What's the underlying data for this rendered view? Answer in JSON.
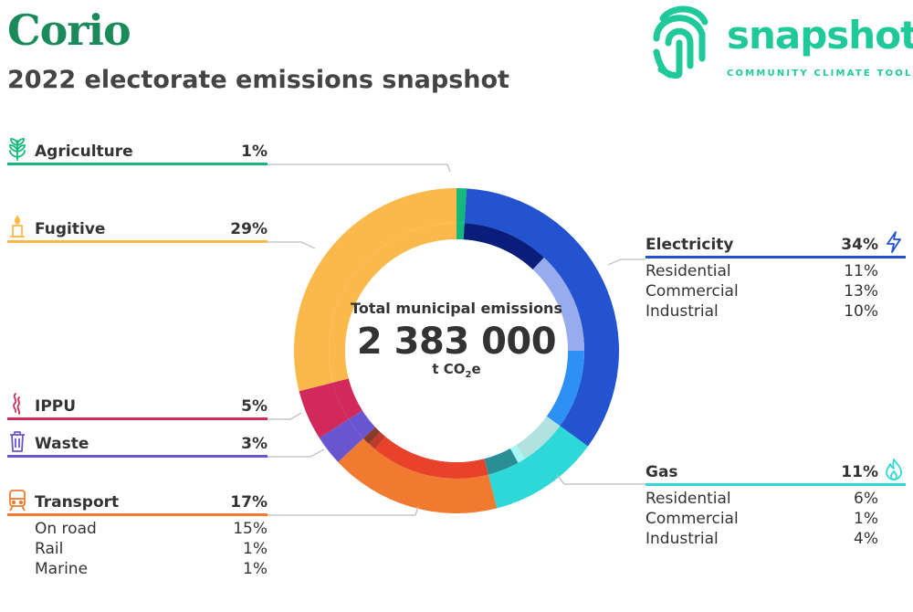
{
  "header": {
    "title": "Corio",
    "subtitle": "2022 electorate emissions snapshot"
  },
  "logo": {
    "word": "snapshot",
    "tagline": "COMMUNITY CLIMATE TOOL",
    "color": "#1fc99a"
  },
  "center": {
    "label": "Total municipal emissions",
    "value": "2 383 000",
    "unit": "t CO",
    "unit_sub": "2",
    "unit_tail": "e"
  },
  "chart_data": {
    "type": "pie",
    "title": "2022 electorate emissions snapshot",
    "total": "2 383 000",
    "unit": "t CO2e",
    "sectors": [
      {
        "name": "Agriculture",
        "percent": 1,
        "pct_label": "1%",
        "color": "#13b87a",
        "icon": "wheat-icon",
        "subs": []
      },
      {
        "name": "Electricity",
        "percent": 34,
        "pct_label": "34%",
        "color": "#2453cf",
        "icon": "lightning-icon",
        "subs": [
          {
            "name": "Residential",
            "percent": 11,
            "pct_label": "11%",
            "color": "#0a1d7a"
          },
          {
            "name": "Commercial",
            "percent": 13,
            "pct_label": "13%",
            "color": "#98aced"
          },
          {
            "name": "Industrial",
            "percent": 10,
            "pct_label": "10%",
            "color": "#2e90f5"
          }
        ]
      },
      {
        "name": "Gas",
        "percent": 11,
        "pct_label": "11%",
        "color": "#2ed8d8",
        "icon": "flame-icon",
        "subs": [
          {
            "name": "Residential",
            "percent": 6,
            "pct_label": "6%",
            "color": "#b2e2e0"
          },
          {
            "name": "Commercial",
            "percent": 1,
            "pct_label": "1%",
            "color": "#a8f5f5"
          },
          {
            "name": "Industrial",
            "percent": 4,
            "pct_label": "4%",
            "color": "#2a8e94"
          }
        ]
      },
      {
        "name": "Transport",
        "percent": 17,
        "pct_label": "17%",
        "color": "#f07a2f",
        "icon": "train-icon",
        "subs": [
          {
            "name": "On road",
            "percent": 15,
            "pct_label": "15%",
            "color": "#e8432a"
          },
          {
            "name": "Rail",
            "percent": 1,
            "pct_label": "1%",
            "color": "#c0392b"
          },
          {
            "name": "Marine",
            "percent": 1,
            "pct_label": "1%",
            "color": "#8a3a2a"
          }
        ]
      },
      {
        "name": "Waste",
        "percent": 3,
        "pct_label": "3%",
        "color": "#6a55d0",
        "icon": "trash-icon",
        "subs": []
      },
      {
        "name": "IPPU",
        "percent": 5,
        "pct_label": "5%",
        "color": "#d0295a",
        "icon": "smoke-icon",
        "subs": []
      },
      {
        "name": "Fugitive",
        "percent": 29,
        "pct_label": "29%",
        "color": "#fbb94c",
        "icon": "candle-icon",
        "subs": []
      }
    ]
  }
}
